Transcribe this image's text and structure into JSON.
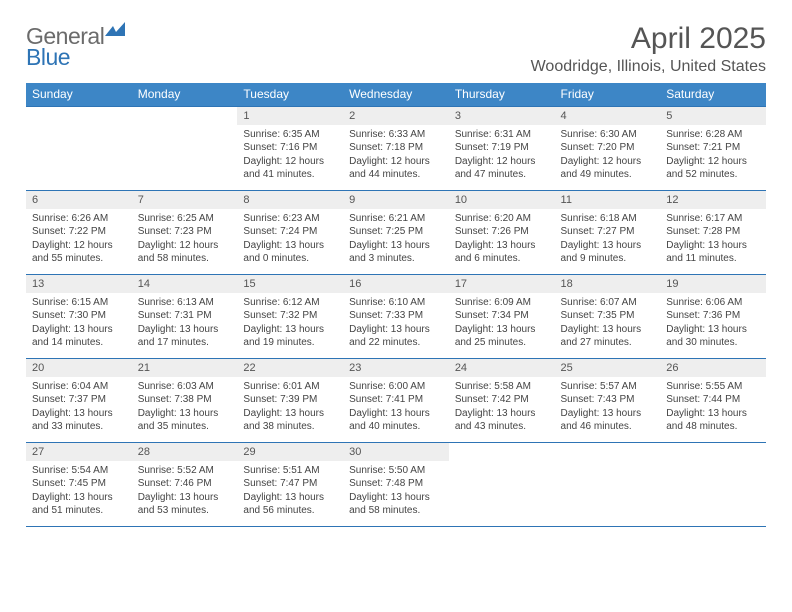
{
  "logo": {
    "text_general": "General",
    "text_blue": "Blue",
    "mark_color": "#2e74b5"
  },
  "title": "April 2025",
  "location": "Woodridge, Illinois, United States",
  "colors": {
    "header_bg": "#3d86c6",
    "header_fg": "#ffffff",
    "daynum_bg": "#eeeeee",
    "rule": "#2e74b5",
    "text": "#444444"
  },
  "weekdays": [
    "Sunday",
    "Monday",
    "Tuesday",
    "Wednesday",
    "Thursday",
    "Friday",
    "Saturday"
  ],
  "weeks": [
    {
      "nums": [
        "",
        "",
        "1",
        "2",
        "3",
        "4",
        "5"
      ],
      "cells": [
        null,
        null,
        {
          "sunrise": "6:35 AM",
          "sunset": "7:16 PM",
          "daylight": "12 hours and 41 minutes."
        },
        {
          "sunrise": "6:33 AM",
          "sunset": "7:18 PM",
          "daylight": "12 hours and 44 minutes."
        },
        {
          "sunrise": "6:31 AM",
          "sunset": "7:19 PM",
          "daylight": "12 hours and 47 minutes."
        },
        {
          "sunrise": "6:30 AM",
          "sunset": "7:20 PM",
          "daylight": "12 hours and 49 minutes."
        },
        {
          "sunrise": "6:28 AM",
          "sunset": "7:21 PM",
          "daylight": "12 hours and 52 minutes."
        }
      ]
    },
    {
      "nums": [
        "6",
        "7",
        "8",
        "9",
        "10",
        "11",
        "12"
      ],
      "cells": [
        {
          "sunrise": "6:26 AM",
          "sunset": "7:22 PM",
          "daylight": "12 hours and 55 minutes."
        },
        {
          "sunrise": "6:25 AM",
          "sunset": "7:23 PM",
          "daylight": "12 hours and 58 minutes."
        },
        {
          "sunrise": "6:23 AM",
          "sunset": "7:24 PM",
          "daylight": "13 hours and 0 minutes."
        },
        {
          "sunrise": "6:21 AM",
          "sunset": "7:25 PM",
          "daylight": "13 hours and 3 minutes."
        },
        {
          "sunrise": "6:20 AM",
          "sunset": "7:26 PM",
          "daylight": "13 hours and 6 minutes."
        },
        {
          "sunrise": "6:18 AM",
          "sunset": "7:27 PM",
          "daylight": "13 hours and 9 minutes."
        },
        {
          "sunrise": "6:17 AM",
          "sunset": "7:28 PM",
          "daylight": "13 hours and 11 minutes."
        }
      ]
    },
    {
      "nums": [
        "13",
        "14",
        "15",
        "16",
        "17",
        "18",
        "19"
      ],
      "cells": [
        {
          "sunrise": "6:15 AM",
          "sunset": "7:30 PM",
          "daylight": "13 hours and 14 minutes."
        },
        {
          "sunrise": "6:13 AM",
          "sunset": "7:31 PM",
          "daylight": "13 hours and 17 minutes."
        },
        {
          "sunrise": "6:12 AM",
          "sunset": "7:32 PM",
          "daylight": "13 hours and 19 minutes."
        },
        {
          "sunrise": "6:10 AM",
          "sunset": "7:33 PM",
          "daylight": "13 hours and 22 minutes."
        },
        {
          "sunrise": "6:09 AM",
          "sunset": "7:34 PM",
          "daylight": "13 hours and 25 minutes."
        },
        {
          "sunrise": "6:07 AM",
          "sunset": "7:35 PM",
          "daylight": "13 hours and 27 minutes."
        },
        {
          "sunrise": "6:06 AM",
          "sunset": "7:36 PM",
          "daylight": "13 hours and 30 minutes."
        }
      ]
    },
    {
      "nums": [
        "20",
        "21",
        "22",
        "23",
        "24",
        "25",
        "26"
      ],
      "cells": [
        {
          "sunrise": "6:04 AM",
          "sunset": "7:37 PM",
          "daylight": "13 hours and 33 minutes."
        },
        {
          "sunrise": "6:03 AM",
          "sunset": "7:38 PM",
          "daylight": "13 hours and 35 minutes."
        },
        {
          "sunrise": "6:01 AM",
          "sunset": "7:39 PM",
          "daylight": "13 hours and 38 minutes."
        },
        {
          "sunrise": "6:00 AM",
          "sunset": "7:41 PM",
          "daylight": "13 hours and 40 minutes."
        },
        {
          "sunrise": "5:58 AM",
          "sunset": "7:42 PM",
          "daylight": "13 hours and 43 minutes."
        },
        {
          "sunrise": "5:57 AM",
          "sunset": "7:43 PM",
          "daylight": "13 hours and 46 minutes."
        },
        {
          "sunrise": "5:55 AM",
          "sunset": "7:44 PM",
          "daylight": "13 hours and 48 minutes."
        }
      ]
    },
    {
      "nums": [
        "27",
        "28",
        "29",
        "30",
        "",
        "",
        ""
      ],
      "cells": [
        {
          "sunrise": "5:54 AM",
          "sunset": "7:45 PM",
          "daylight": "13 hours and 51 minutes."
        },
        {
          "sunrise": "5:52 AM",
          "sunset": "7:46 PM",
          "daylight": "13 hours and 53 minutes."
        },
        {
          "sunrise": "5:51 AM",
          "sunset": "7:47 PM",
          "daylight": "13 hours and 56 minutes."
        },
        {
          "sunrise": "5:50 AM",
          "sunset": "7:48 PM",
          "daylight": "13 hours and 58 minutes."
        },
        null,
        null,
        null
      ]
    }
  ],
  "labels": {
    "sunrise": "Sunrise: ",
    "sunset": "Sunset: ",
    "daylight": "Daylight: "
  }
}
